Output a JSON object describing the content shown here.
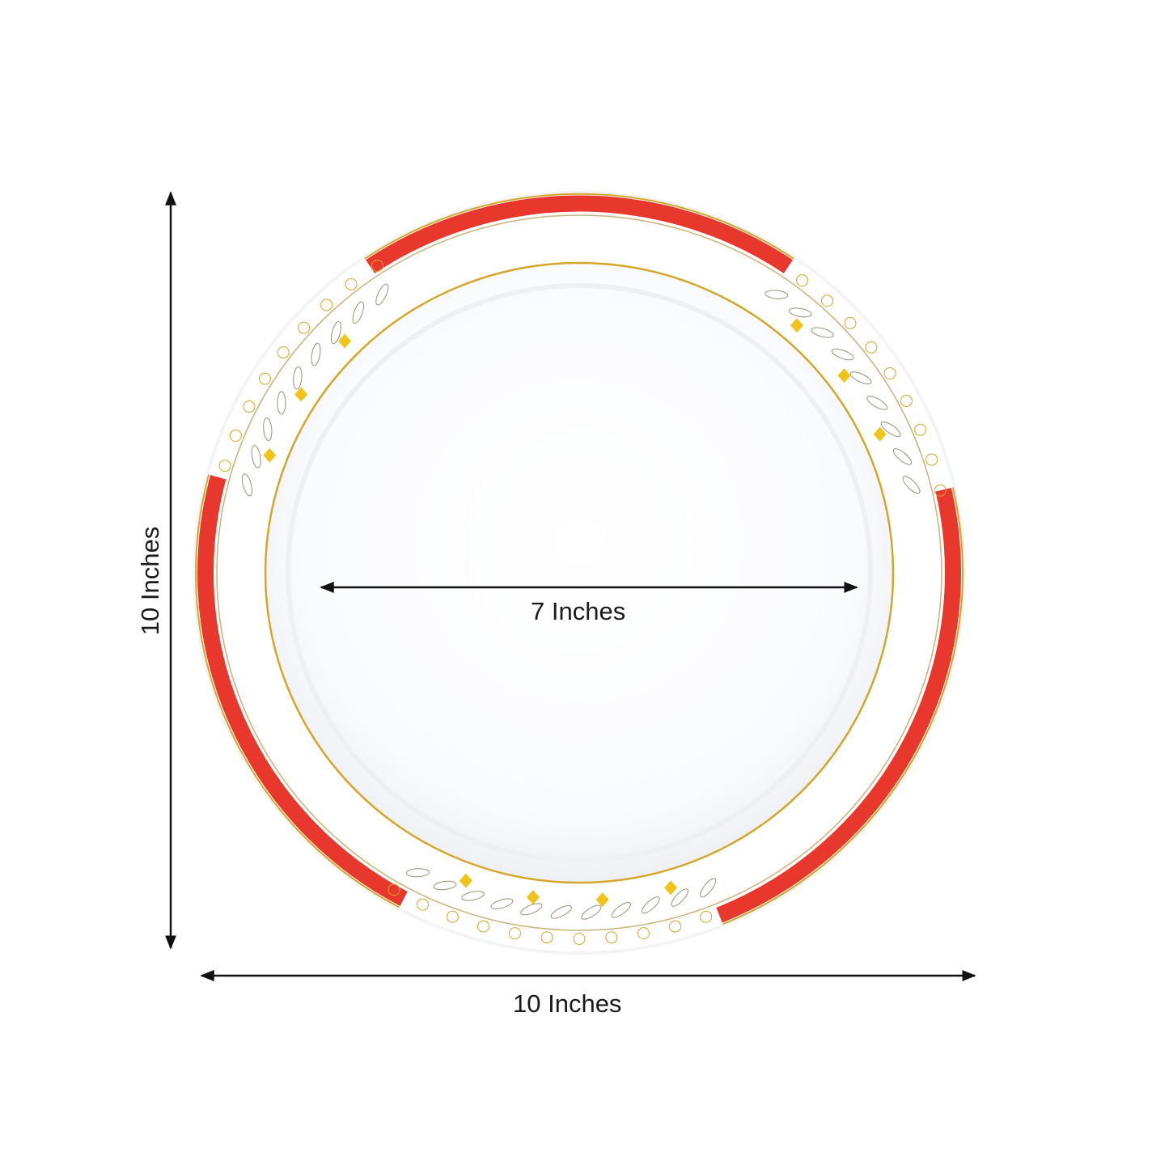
{
  "dimensions": {
    "height_label": "10 Inches",
    "width_label": "10 Inches",
    "inner_label": "7 Inches"
  },
  "colors": {
    "rim_red": "#e8372c",
    "gold": "#d4a72c",
    "gold_bright": "#f0c419",
    "line_art": "#9a8f7a",
    "arrow": "#111111"
  }
}
